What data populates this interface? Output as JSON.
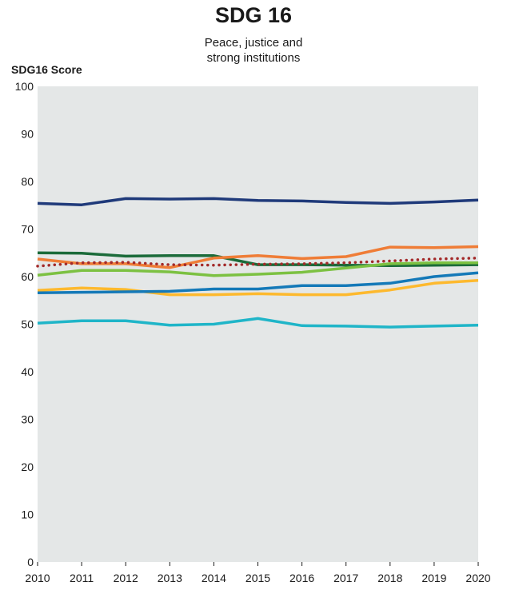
{
  "chart_data": {
    "type": "line",
    "title": "SDG 16",
    "subtitle": [
      "Peace, justice and",
      "strong institutions"
    ],
    "ylabel": "SDG16 Score",
    "xlabel": "",
    "x": [
      2010,
      2011,
      2012,
      2013,
      2014,
      2015,
      2016,
      2017,
      2018,
      2019,
      2020
    ],
    "ylim": [
      0,
      100
    ],
    "yticks": [
      0,
      10,
      20,
      30,
      40,
      50,
      60,
      70,
      80,
      90,
      100
    ],
    "grid": false,
    "background": "#e4e7e7",
    "series": [
      {
        "color": "#1f3a7a",
        "style": "solid",
        "values": [
          75.4,
          75.1,
          76.4,
          76.3,
          76.4,
          76.0,
          75.9,
          75.6,
          75.4,
          75.7,
          76.1
        ]
      },
      {
        "color": "#1b6b3a",
        "style": "solid",
        "values": [
          65.0,
          64.9,
          64.3,
          64.4,
          64.4,
          62.5,
          62.5,
          62.4,
          62.3,
          62.4,
          62.5
        ]
      },
      {
        "color": "#ef7d37",
        "style": "solid",
        "values": [
          63.7,
          62.7,
          62.7,
          61.9,
          63.9,
          64.4,
          63.8,
          64.2,
          66.2,
          66.1,
          66.3
        ]
      },
      {
        "color": "#a32a2a",
        "style": "dotted",
        "values": [
          62.2,
          62.9,
          63.0,
          62.5,
          62.4,
          62.6,
          62.7,
          62.9,
          63.3,
          63.7,
          63.9
        ]
      },
      {
        "color": "#7cc142",
        "style": "solid",
        "values": [
          60.3,
          61.3,
          61.3,
          61.0,
          60.2,
          60.5,
          60.9,
          61.8,
          62.7,
          62.9,
          62.9
        ]
      },
      {
        "color": "#fdb92e",
        "style": "solid",
        "values": [
          57.1,
          57.6,
          57.3,
          56.2,
          56.2,
          56.4,
          56.2,
          56.2,
          57.2,
          58.6,
          59.2
        ]
      },
      {
        "color": "#1479b8",
        "style": "solid",
        "values": [
          56.6,
          56.7,
          56.8,
          56.9,
          57.4,
          57.4,
          58.1,
          58.1,
          58.6,
          60.0,
          60.8
        ]
      },
      {
        "color": "#1fb5c8",
        "style": "solid",
        "values": [
          50.2,
          50.7,
          50.7,
          49.8,
          50.0,
          51.2,
          49.7,
          49.6,
          49.4,
          49.6,
          49.8
        ]
      }
    ]
  }
}
